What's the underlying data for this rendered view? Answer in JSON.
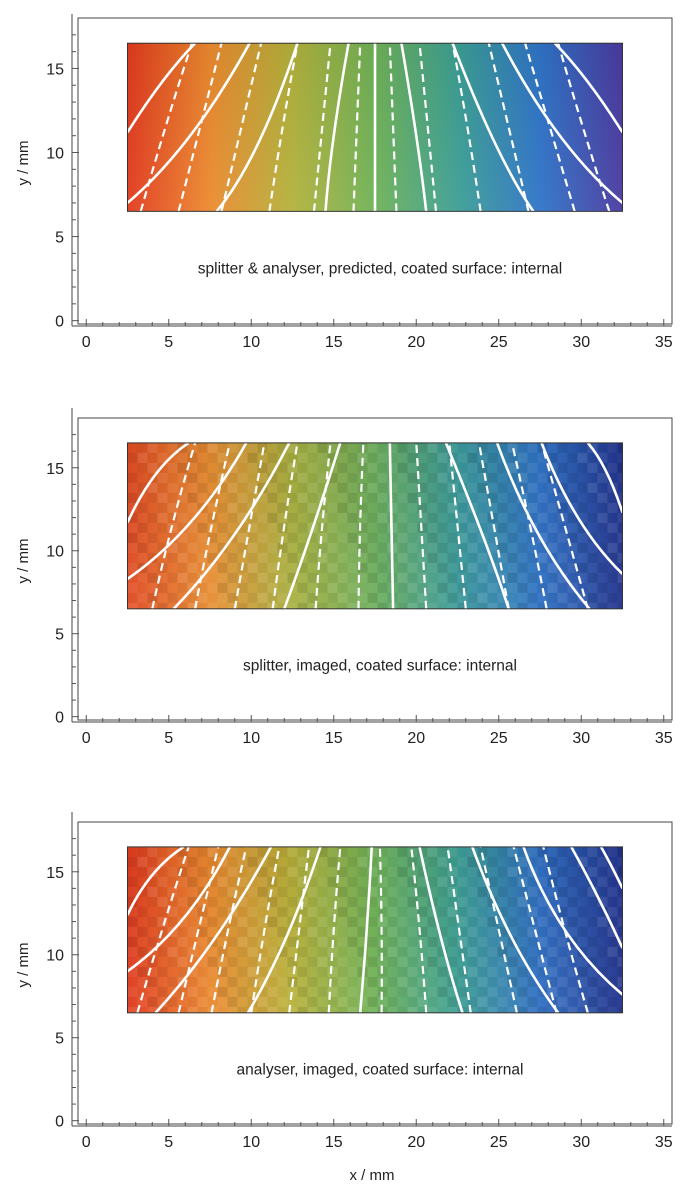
{
  "chart_data": [
    {
      "type": "heatmap",
      "caption": "splitter & analyser, predicted, coated surface: internal",
      "xlabel": "",
      "ylabel": "y / mm",
      "xlim": [
        -0.5,
        35.5
      ],
      "ylim": [
        -0.2,
        18
      ],
      "xticks": [
        0,
        5,
        10,
        15,
        20,
        25,
        30,
        35
      ],
      "yticks": [
        0,
        5,
        10,
        15
      ],
      "field_region": {
        "x": [
          2.5,
          32.5
        ],
        "y": [
          6.5,
          16.5
        ]
      },
      "colormap": [
        "#e23a1e",
        "#ec8a2f",
        "#b3b23c",
        "#6fb257",
        "#3c9f94",
        "#2f74c8",
        "#4a3aa0"
      ],
      "pixelated": false,
      "solid_contours": [
        [
          [
            2.5,
            11.2
          ],
          [
            4.6,
            14.2
          ],
          [
            6.6,
            16.5
          ]
        ],
        [
          [
            2.5,
            7.0
          ],
          [
            6.3,
            11.0
          ],
          [
            9.9,
            16.5
          ]
        ],
        [
          [
            7.9,
            6.5
          ],
          [
            10.4,
            10.5
          ],
          [
            12.8,
            16.5
          ]
        ],
        [
          [
            14.5,
            6.5
          ],
          [
            15.0,
            11.0
          ],
          [
            15.9,
            16.5
          ]
        ],
        [
          [
            17.5,
            6.5
          ],
          [
            17.5,
            11.5
          ],
          [
            17.5,
            16.5
          ]
        ],
        [
          [
            20.6,
            6.5
          ],
          [
            20.0,
            11.0
          ],
          [
            19.1,
            16.5
          ]
        ],
        [
          [
            27.1,
            6.5
          ],
          [
            24.8,
            10.5
          ],
          [
            22.2,
            16.5
          ]
        ],
        [
          [
            32.5,
            7.0
          ],
          [
            28.7,
            11.0
          ],
          [
            25.2,
            16.5
          ]
        ],
        [
          [
            32.5,
            11.2
          ],
          [
            30.4,
            14.2
          ],
          [
            28.4,
            16.5
          ]
        ]
      ],
      "dashed_contours": [
        [
          [
            3.3,
            6.5
          ],
          [
            4.8,
            11.5
          ],
          [
            6.4,
            16.5
          ]
        ],
        [
          [
            5.6,
            6.5
          ],
          [
            6.9,
            11.5
          ],
          [
            8.2,
            16.5
          ]
        ],
        [
          [
            8.2,
            6.5
          ],
          [
            9.4,
            11.5
          ],
          [
            10.6,
            16.5
          ]
        ],
        [
          [
            11.1,
            6.5
          ],
          [
            11.9,
            11.5
          ],
          [
            12.8,
            16.5
          ]
        ],
        [
          [
            13.8,
            6.5
          ],
          [
            14.3,
            11.5
          ],
          [
            14.8,
            16.5
          ]
        ],
        [
          [
            16.2,
            6.5
          ],
          [
            16.4,
            11.5
          ],
          [
            16.6,
            16.5
          ]
        ],
        [
          [
            18.8,
            6.5
          ],
          [
            18.6,
            11.5
          ],
          [
            18.4,
            16.5
          ]
        ],
        [
          [
            21.2,
            6.5
          ],
          [
            20.7,
            11.5
          ],
          [
            20.2,
            16.5
          ]
        ],
        [
          [
            23.9,
            6.5
          ],
          [
            23.1,
            11.5
          ],
          [
            22.2,
            16.5
          ]
        ],
        [
          [
            26.8,
            6.5
          ],
          [
            25.6,
            11.5
          ],
          [
            24.4,
            16.5
          ]
        ],
        [
          [
            29.6,
            6.5
          ],
          [
            28.1,
            11.5
          ],
          [
            26.6,
            16.5
          ]
        ],
        [
          [
            31.7,
            6.5
          ],
          [
            30.1,
            11.5
          ],
          [
            28.6,
            16.5
          ]
        ]
      ]
    },
    {
      "type": "heatmap",
      "caption": "splitter, imaged, coated surface: internal",
      "xlabel": "",
      "ylabel": "y / mm",
      "xlim": [
        -0.5,
        35.5
      ],
      "ylim": [
        -0.2,
        18
      ],
      "xticks": [
        0,
        5,
        10,
        15,
        20,
        25,
        30,
        35
      ],
      "yticks": [
        0,
        5,
        10,
        15
      ],
      "field_region": {
        "x": [
          2.5,
          32.5
        ],
        "y": [
          6.5,
          16.5
        ]
      },
      "colormap": [
        "#e24a22",
        "#e98f33",
        "#a9b140",
        "#6bae5c",
        "#3a9a9a",
        "#2f72c6",
        "#22338e"
      ],
      "pixelated": true,
      "solid_contours": [
        [
          [
            2.5,
            11.7
          ],
          [
            4.2,
            14.6
          ],
          [
            6.2,
            16.5
          ]
        ],
        [
          [
            2.5,
            8.3
          ],
          [
            6.4,
            11.8
          ],
          [
            9.7,
            16.5
          ]
        ],
        [
          [
            5.3,
            6.5
          ],
          [
            9.0,
            11.0
          ],
          [
            12.3,
            16.5
          ]
        ],
        [
          [
            12.0,
            6.5
          ],
          [
            13.6,
            11.0
          ],
          [
            15.4,
            16.5
          ]
        ],
        [
          [
            18.6,
            6.5
          ],
          [
            18.5,
            11.5
          ],
          [
            18.4,
            16.5
          ]
        ],
        [
          [
            25.6,
            6.5
          ],
          [
            24.0,
            11.0
          ],
          [
            21.8,
            16.5
          ]
        ],
        [
          [
            30.5,
            6.5
          ],
          [
            27.4,
            11.0
          ],
          [
            24.9,
            16.5
          ]
        ],
        [
          [
            32.5,
            8.6
          ],
          [
            29.8,
            12.0
          ],
          [
            27.6,
            16.5
          ]
        ],
        [
          [
            32.5,
            12.3
          ],
          [
            31.5,
            14.8
          ],
          [
            30.4,
            16.5
          ]
        ]
      ],
      "dashed_contours": [
        [
          [
            4.0,
            6.5
          ],
          [
            5.2,
            11.5
          ],
          [
            6.6,
            16.5
          ]
        ],
        [
          [
            6.6,
            6.5
          ],
          [
            7.6,
            11.5
          ],
          [
            8.7,
            16.5
          ]
        ],
        [
          [
            9.0,
            6.5
          ],
          [
            9.9,
            11.5
          ],
          [
            10.8,
            16.5
          ]
        ],
        [
          [
            11.3,
            6.5
          ],
          [
            12.0,
            11.5
          ],
          [
            12.8,
            16.5
          ]
        ],
        [
          [
            13.9,
            6.5
          ],
          [
            14.3,
            11.5
          ],
          [
            14.8,
            16.5
          ]
        ],
        [
          [
            16.5,
            6.5
          ],
          [
            16.6,
            11.5
          ],
          [
            16.8,
            16.5
          ]
        ],
        [
          [
            20.6,
            6.5
          ],
          [
            20.3,
            11.5
          ],
          [
            20.0,
            16.5
          ]
        ],
        [
          [
            23.0,
            6.5
          ],
          [
            22.5,
            11.5
          ],
          [
            22.0,
            16.5
          ]
        ],
        [
          [
            25.6,
            6.5
          ],
          [
            24.7,
            11.5
          ],
          [
            23.8,
            16.5
          ]
        ],
        [
          [
            27.9,
            6.5
          ],
          [
            26.9,
            11.5
          ],
          [
            25.8,
            16.5
          ]
        ],
        [
          [
            30.4,
            6.5
          ],
          [
            29.0,
            11.5
          ],
          [
            27.6,
            16.5
          ]
        ]
      ]
    },
    {
      "type": "heatmap",
      "caption": "analyser, imaged, coated surface: internal",
      "xlabel": "x / mm",
      "ylabel": "y / mm",
      "xlim": [
        -0.5,
        35.5
      ],
      "ylim": [
        -0.2,
        18
      ],
      "xticks": [
        0,
        5,
        10,
        15,
        20,
        25,
        30,
        35
      ],
      "yticks": [
        0,
        5,
        10,
        15
      ],
      "field_region": {
        "x": [
          2.5,
          32.5
        ],
        "y": [
          6.5,
          16.5
        ]
      },
      "colormap": [
        "#e23a1e",
        "#ec8a2f",
        "#b8b23a",
        "#6fb257",
        "#3c9f94",
        "#2f6fc4",
        "#22338e"
      ],
      "pixelated": true,
      "solid_contours": [
        [
          [
            2.5,
            12.4
          ],
          [
            4.0,
            14.8
          ],
          [
            5.9,
            16.5
          ]
        ],
        [
          [
            2.5,
            9.0
          ],
          [
            5.9,
            12.2
          ],
          [
            8.7,
            16.5
          ]
        ],
        [
          [
            4.2,
            6.5
          ],
          [
            7.8,
            11.0
          ],
          [
            11.2,
            16.5
          ]
        ],
        [
          [
            9.8,
            6.5
          ],
          [
            12.1,
            11.0
          ],
          [
            14.2,
            16.5
          ]
        ],
        [
          [
            16.6,
            6.5
          ],
          [
            17.0,
            11.5
          ],
          [
            17.3,
            16.5
          ]
        ],
        [
          [
            22.8,
            6.5
          ],
          [
            21.5,
            11.0
          ],
          [
            20.2,
            16.5
          ]
        ],
        [
          [
            28.6,
            6.5
          ],
          [
            25.8,
            11.0
          ],
          [
            23.4,
            16.5
          ]
        ],
        [
          [
            32.5,
            7.6
          ],
          [
            29.0,
            11.5
          ],
          [
            26.5,
            16.5
          ]
        ],
        [
          [
            32.5,
            10.4
          ],
          [
            31.0,
            13.5
          ],
          [
            29.4,
            16.5
          ]
        ],
        [
          [
            32.5,
            14.0
          ],
          [
            31.8,
            15.4
          ],
          [
            31.2,
            16.5
          ]
        ]
      ],
      "dashed_contours": [
        [
          [
            3.1,
            6.5
          ],
          [
            4.6,
            11.5
          ],
          [
            6.2,
            16.5
          ]
        ],
        [
          [
            5.6,
            6.5
          ],
          [
            6.8,
            11.5
          ],
          [
            8.0,
            16.5
          ]
        ],
        [
          [
            7.6,
            6.5
          ],
          [
            8.6,
            11.5
          ],
          [
            9.7,
            16.5
          ]
        ],
        [
          [
            10.0,
            6.5
          ],
          [
            10.8,
            11.5
          ],
          [
            11.7,
            16.5
          ]
        ],
        [
          [
            12.3,
            6.5
          ],
          [
            12.9,
            11.5
          ],
          [
            13.5,
            16.5
          ]
        ],
        [
          [
            14.7,
            6.5
          ],
          [
            15.0,
            11.5
          ],
          [
            15.4,
            16.5
          ]
        ],
        [
          [
            17.9,
            6.5
          ],
          [
            17.9,
            11.5
          ],
          [
            17.8,
            16.5
          ]
        ],
        [
          [
            20.6,
            6.5
          ],
          [
            20.2,
            11.5
          ],
          [
            19.7,
            16.5
          ]
        ],
        [
          [
            23.3,
            6.5
          ],
          [
            22.6,
            11.5
          ],
          [
            21.9,
            16.5
          ]
        ],
        [
          [
            26.1,
            6.5
          ],
          [
            25.0,
            11.5
          ],
          [
            23.9,
            16.5
          ]
        ],
        [
          [
            28.5,
            6.5
          ],
          [
            27.2,
            11.5
          ],
          [
            25.9,
            16.5
          ]
        ],
        [
          [
            30.4,
            6.5
          ],
          [
            29.0,
            11.5
          ],
          [
            27.7,
            16.5
          ]
        ]
      ]
    }
  ]
}
